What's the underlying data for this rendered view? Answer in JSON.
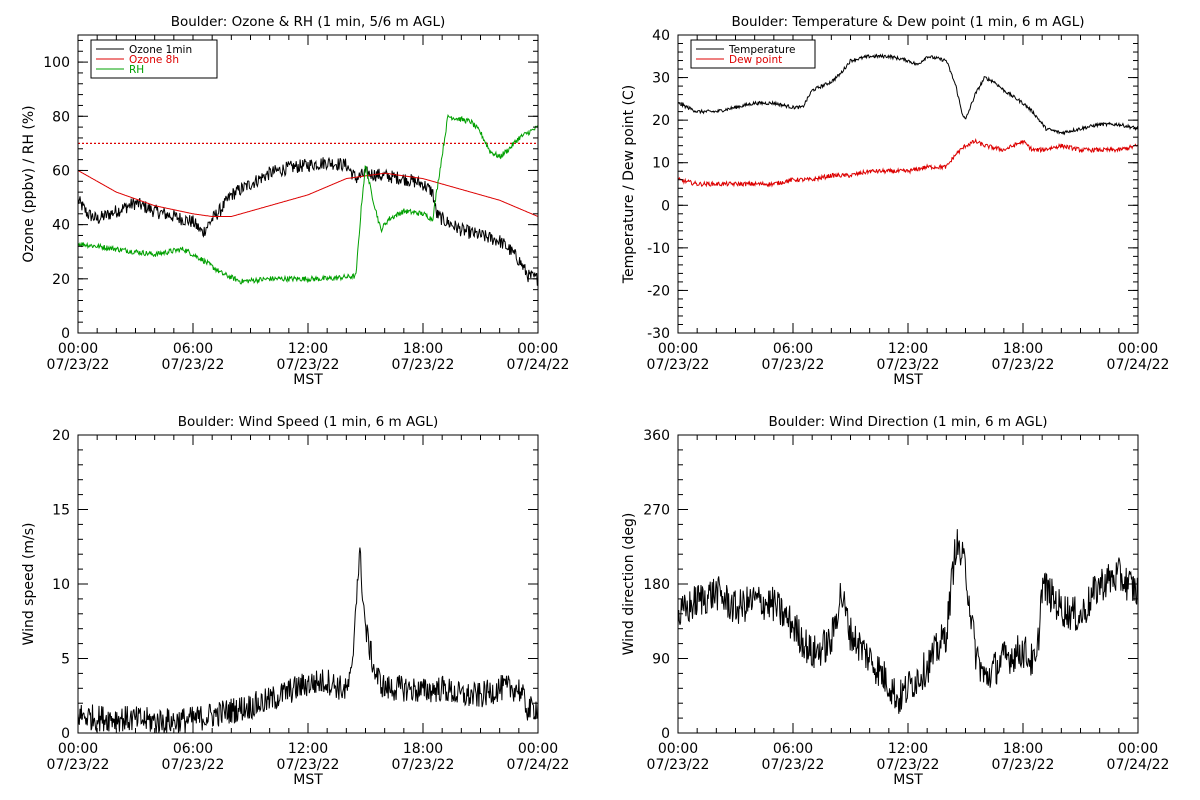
{
  "chart_data": [
    {
      "type": "line",
      "title": "Boulder: Ozone & RH (1 min, 5/6 m AGL)",
      "ylabel": "Ozone (ppbv) / RH (%)",
      "xlabel": "MST",
      "xlim": [
        0,
        24
      ],
      "ylim": [
        0,
        110
      ],
      "yticks": [
        0,
        20,
        40,
        60,
        80,
        100
      ],
      "xtick_labels": [
        {
          "x": 0,
          "time": "00:00",
          "date": "07/23/22"
        },
        {
          "x": 6,
          "time": "06:00",
          "date": "07/23/22"
        },
        {
          "x": 12,
          "time": "12:00",
          "date": "07/23/22"
        },
        {
          "x": 18,
          "time": "18:00",
          "date": "07/23/22"
        },
        {
          "x": 24,
          "time": "00:00",
          "date": "07/24/22"
        }
      ],
      "legend": {
        "placement": "top-left"
      },
      "reference_lines": [
        {
          "y": 70,
          "color": "#dd0000",
          "style": "dotted"
        }
      ],
      "series": [
        {
          "name": "Ozone 1min",
          "color": "#000000",
          "noise": 2.5,
          "x": [
            0,
            0.5,
            1,
            2,
            3,
            4,
            5,
            6,
            6.5,
            7,
            7.5,
            8,
            9,
            10,
            11,
            12,
            13,
            14,
            14.5,
            15,
            16,
            17,
            18,
            18.5,
            18.7,
            19,
            20,
            21,
            22,
            22.5,
            23,
            23.5,
            24
          ],
          "y": [
            49,
            44,
            42,
            45,
            48,
            45,
            43,
            41,
            37,
            42,
            46,
            51,
            55,
            59,
            61,
            62,
            63,
            62,
            57,
            59,
            58,
            57,
            55,
            52,
            44,
            42,
            38,
            36,
            34,
            31,
            27,
            21,
            20
          ]
        },
        {
          "name": "Ozone 8h",
          "color": "#dd0000",
          "noise": 0,
          "x": [
            0,
            2,
            4,
            6,
            7,
            8,
            10,
            12,
            14,
            16,
            18,
            20,
            22,
            24
          ],
          "y": [
            60,
            52,
            47,
            44,
            43,
            43,
            47,
            51,
            57,
            59,
            57,
            53,
            49,
            43
          ]
        },
        {
          "name": "RH",
          "color": "#00a000",
          "noise": 1,
          "x": [
            0,
            2,
            4,
            5.5,
            6.5,
            7.5,
            8.5,
            10,
            12,
            13,
            14.5,
            14.8,
            15,
            15.3,
            15.8,
            16.2,
            17,
            18,
            18.5,
            19.3,
            20.5,
            21,
            21.5,
            22,
            22.5,
            23,
            24
          ],
          "y": [
            33,
            31,
            29,
            31,
            27,
            22,
            19,
            20,
            20,
            20,
            21,
            48,
            62,
            52,
            38,
            42,
            45,
            44,
            42,
            80,
            78,
            74,
            67,
            65,
            68,
            72,
            76
          ]
        }
      ]
    },
    {
      "type": "line",
      "title": "Boulder: Temperature & Dew point (1 min, 6 m AGL)",
      "ylabel": "Temperature / Dew point (C)",
      "xlabel": "MST",
      "xlim": [
        0,
        24
      ],
      "ylim": [
        -30,
        40
      ],
      "yticks": [
        -30,
        -20,
        -10,
        0,
        10,
        20,
        30,
        40
      ],
      "xtick_labels": [
        {
          "x": 0,
          "time": "00:00",
          "date": "07/23/22"
        },
        {
          "x": 6,
          "time": "06:00",
          "date": "07/23/22"
        },
        {
          "x": 12,
          "time": "12:00",
          "date": "07/23/22"
        },
        {
          "x": 18,
          "time": "18:00",
          "date": "07/23/22"
        },
        {
          "x": 24,
          "time": "00:00",
          "date": "07/24/22"
        }
      ],
      "legend": {
        "placement": "top-left"
      },
      "series": [
        {
          "name": "Temperature",
          "color": "#000000",
          "noise": 0.4,
          "x": [
            0,
            1,
            2,
            3,
            4,
            5,
            6,
            6.5,
            7,
            8,
            8.5,
            9,
            10,
            11,
            12,
            12.5,
            13,
            14,
            14.5,
            14.8,
            15,
            15.5,
            16,
            16.5,
            17,
            18,
            18.5,
            19.2,
            20,
            21,
            22,
            23,
            24
          ],
          "y": [
            24,
            22,
            22,
            23,
            24,
            24,
            23,
            23,
            27,
            29,
            31,
            34,
            35,
            35,
            34,
            33,
            35,
            34,
            28,
            22,
            20,
            26,
            30,
            29,
            27,
            24,
            22,
            18,
            17,
            18,
            19,
            19,
            18
          ]
        },
        {
          "name": "Dew point",
          "color": "#dd0000",
          "noise": 0.5,
          "x": [
            0,
            1,
            2,
            3,
            4,
            5,
            6,
            7,
            8,
            9,
            10,
            11,
            12,
            13,
            14,
            14.5,
            15,
            15.5,
            16,
            17,
            18,
            18.5,
            19,
            20,
            21,
            22,
            23,
            24
          ],
          "y": [
            6,
            5,
            5,
            5,
            5,
            5,
            6,
            6,
            7,
            7,
            8,
            8,
            8,
            9,
            9,
            12,
            14,
            15,
            14,
            13,
            15,
            13,
            13,
            14,
            13,
            13,
            13,
            14
          ]
        }
      ]
    },
    {
      "type": "line",
      "title": "Boulder: Wind Speed (1 min, 6 m AGL)",
      "ylabel": "Wind speed (m/s)",
      "xlabel": "MST",
      "xlim": [
        0,
        24
      ],
      "ylim": [
        0,
        20
      ],
      "yticks": [
        0,
        5,
        10,
        15,
        20
      ],
      "xtick_labels": [
        {
          "x": 0,
          "time": "00:00",
          "date": "07/23/22"
        },
        {
          "x": 6,
          "time": "06:00",
          "date": "07/23/22"
        },
        {
          "x": 12,
          "time": "12:00",
          "date": "07/23/22"
        },
        {
          "x": 18,
          "time": "18:00",
          "date": "07/23/22"
        },
        {
          "x": 24,
          "time": "00:00",
          "date": "07/24/22"
        }
      ],
      "series": [
        {
          "name": "",
          "color": "#000000",
          "noise": 0.9,
          "x": [
            0,
            1,
            2,
            3,
            4,
            5,
            6,
            7,
            8,
            9,
            10,
            11,
            12,
            13,
            14,
            14.3,
            14.5,
            14.7,
            15,
            15.5,
            16,
            17,
            18,
            19,
            20,
            21,
            22,
            23,
            23.5,
            24
          ],
          "y": [
            1.2,
            1,
            1,
            0.9,
            0.8,
            0.8,
            0.9,
            1.2,
            1.5,
            1.8,
            2.2,
            2.8,
            3.3,
            3.5,
            2.8,
            4,
            9,
            12,
            7,
            4,
            3,
            3,
            2.8,
            3,
            2.5,
            2.5,
            3,
            3,
            1.5,
            1.8
          ]
        }
      ]
    },
    {
      "type": "line",
      "title": "Boulder: Wind Direction (1 min, 6 m AGL)",
      "ylabel": "Wind direction (deg)",
      "xlabel": "MST",
      "xlim": [
        0,
        24
      ],
      "ylim": [
        0,
        360
      ],
      "yticks": [
        0,
        90,
        180,
        270,
        360
      ],
      "xtick_labels": [
        {
          "x": 0,
          "time": "00:00",
          "date": "07/23/22"
        },
        {
          "x": 6,
          "time": "06:00",
          "date": "07/23/22"
        },
        {
          "x": 12,
          "time": "12:00",
          "date": "07/23/22"
        },
        {
          "x": 18,
          "time": "18:00",
          "date": "07/23/22"
        },
        {
          "x": 24,
          "time": "00:00",
          "date": "07/24/22"
        }
      ],
      "series": [
        {
          "name": "",
          "color": "#000000",
          "noise": 22,
          "x": [
            0,
            1,
            2,
            3,
            4,
            5,
            6,
            7,
            8,
            8.5,
            9,
            10,
            11,
            11.5,
            12,
            13,
            14,
            14.5,
            15,
            15.5,
            16,
            17,
            18,
            18.7,
            19,
            20,
            21,
            22,
            23,
            24
          ],
          "y": [
            140,
            160,
            170,
            150,
            160,
            155,
            130,
            95,
            110,
            170,
            120,
            90,
            60,
            40,
            55,
            80,
            120,
            230,
            200,
            100,
            65,
            90,
            100,
            80,
            180,
            150,
            140,
            180,
            190,
            170
          ]
        }
      ]
    }
  ]
}
